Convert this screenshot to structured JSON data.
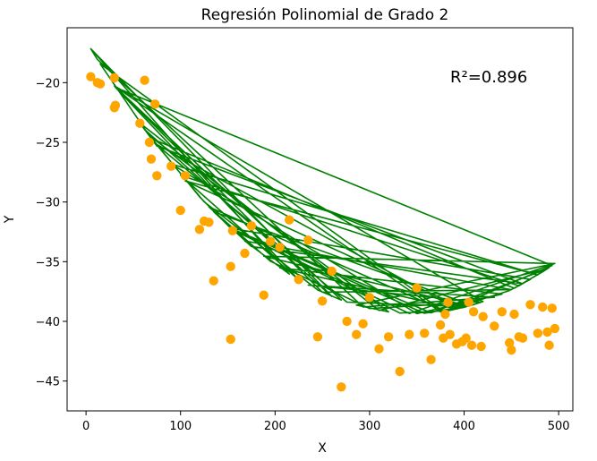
{
  "chart_data": {
    "type": "scatter",
    "title": "Regresión Polinomial de Grado 2",
    "xlabel": "X",
    "ylabel": "Y",
    "xlim": [
      -20,
      515
    ],
    "ylim": [
      -47.5,
      -15.4
    ],
    "xticks": [
      0,
      100,
      200,
      300,
      400,
      500
    ],
    "yticks": [
      -45,
      -40,
      -35,
      -30,
      -25,
      -20
    ],
    "grid": false,
    "annotation": "R²=0.896",
    "colors": {
      "points": "#FFA500",
      "line": "#008000"
    },
    "points": [
      [
        5,
        -19.5
      ],
      [
        12,
        -20.0
      ],
      [
        15,
        -20.1
      ],
      [
        30,
        -22.1
      ],
      [
        31,
        -21.9
      ],
      [
        30,
        -19.6
      ],
      [
        57,
        -23.4
      ],
      [
        62,
        -19.8
      ],
      [
        67,
        -25.0
      ],
      [
        69,
        -26.4
      ],
      [
        73,
        -21.8
      ],
      [
        75,
        -27.8
      ],
      [
        90,
        -27.0
      ],
      [
        100,
        -30.7
      ],
      [
        105,
        -27.8
      ],
      [
        120,
        -32.3
      ],
      [
        125,
        -31.6
      ],
      [
        130,
        -31.7
      ],
      [
        135,
        -36.6
      ],
      [
        153,
        -41.5
      ],
      [
        153,
        -35.4
      ],
      [
        155,
        -32.4
      ],
      [
        168,
        -34.3
      ],
      [
        175,
        -32.0
      ],
      [
        188,
        -37.8
      ],
      [
        195,
        -33.3
      ],
      [
        205,
        -33.8
      ],
      [
        215,
        -31.5
      ],
      [
        225,
        -36.5
      ],
      [
        235,
        -33.2
      ],
      [
        245,
        -41.3
      ],
      [
        250,
        -38.3
      ],
      [
        260,
        -35.8
      ],
      [
        270,
        -45.5
      ],
      [
        276,
        -40.0
      ],
      [
        286,
        -41.1
      ],
      [
        293,
        -40.2
      ],
      [
        300,
        -38.0
      ],
      [
        310,
        -42.3
      ],
      [
        320,
        -41.3
      ],
      [
        332,
        -44.2
      ],
      [
        342,
        -41.1
      ],
      [
        350,
        -37.2
      ],
      [
        358,
        -41.0
      ],
      [
        365,
        -43.2
      ],
      [
        375,
        -40.3
      ],
      [
        378,
        -41.4
      ],
      [
        380,
        -39.4
      ],
      [
        383,
        -38.4
      ],
      [
        385,
        -41.1
      ],
      [
        392,
        -41.9
      ],
      [
        398,
        -41.7
      ],
      [
        402,
        -41.4
      ],
      [
        405,
        -38.4
      ],
      [
        408,
        -42.0
      ],
      [
        410,
        -39.2
      ],
      [
        418,
        -42.1
      ],
      [
        420,
        -39.6
      ],
      [
        432,
        -40.4
      ],
      [
        440,
        -39.2
      ],
      [
        448,
        -41.8
      ],
      [
        450,
        -42.4
      ],
      [
        453,
        -39.4
      ],
      [
        458,
        -41.3
      ],
      [
        462,
        -41.4
      ],
      [
        470,
        -38.6
      ],
      [
        478,
        -41.0
      ],
      [
        483,
        -38.8
      ],
      [
        488,
        -40.9
      ],
      [
        490,
        -42.0
      ],
      [
        493,
        -38.9
      ],
      [
        496,
        -40.6
      ]
    ],
    "fit_curve": {
      "a": 0.0001895,
      "b": -0.1316,
      "c": -16.5,
      "x_start": 5,
      "x_end": 496
    }
  }
}
